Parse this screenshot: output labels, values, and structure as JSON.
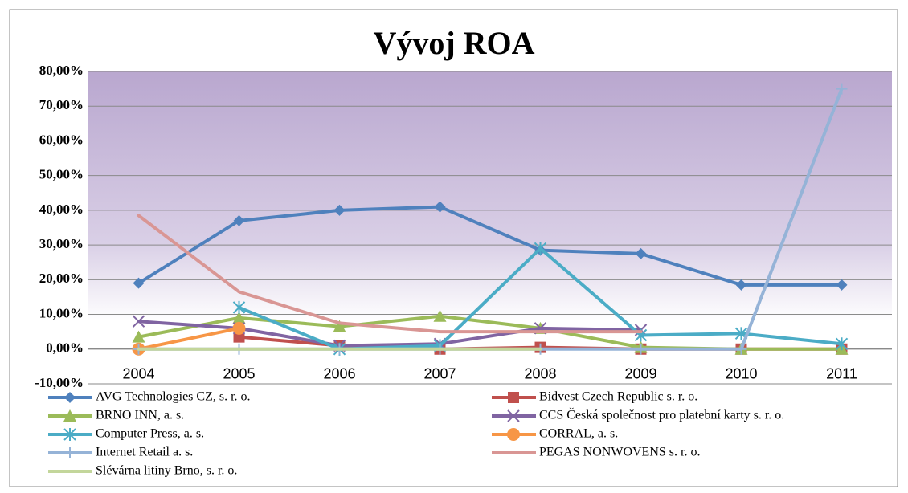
{
  "chart_data": {
    "type": "line",
    "title": "Vývoj ROA",
    "categories": [
      "2004",
      "2005",
      "2006",
      "2007",
      "2008",
      "2009",
      "2010",
      "2011"
    ],
    "ylim": [
      -10,
      80
    ],
    "yticks": [
      {
        "value": -10,
        "label": "-10,00%"
      },
      {
        "value": 0,
        "label": "0,00%"
      },
      {
        "value": 10,
        "label": "10,00%"
      },
      {
        "value": 20,
        "label": "20,00%"
      },
      {
        "value": 30,
        "label": "30,00%"
      },
      {
        "value": 40,
        "label": "40,00%"
      },
      {
        "value": 50,
        "label": "50,00%"
      },
      {
        "value": 60,
        "label": "60,00%"
      },
      {
        "value": 70,
        "label": "70,00%"
      },
      {
        "value": 80,
        "label": "80,00%"
      }
    ],
    "grid": true,
    "legend": "bottom",
    "series": [
      {
        "name": "AVG Technologies CZ, s. r. o.",
        "color": "#4f81bd",
        "marker": "diamond",
        "values": [
          19,
          37,
          40,
          41,
          28.5,
          27.5,
          18.5,
          18.5
        ]
      },
      {
        "name": "Bidvest Czech Republic s. r. o.",
        "color": "#c0504d",
        "marker": "square",
        "values": [
          null,
          3.5,
          1,
          0,
          0.5,
          0,
          0,
          0
        ]
      },
      {
        "name": "BRNO INN, a. s.",
        "color": "#9bbb59",
        "marker": "triangle",
        "values": [
          3.5,
          9,
          6.5,
          9.5,
          6,
          0.5,
          0,
          0
        ]
      },
      {
        "name": "CCS Česká společnost pro platební karty s. r. o.",
        "color": "#8064a2",
        "marker": "x",
        "values": [
          8,
          6,
          1,
          1.5,
          6,
          5.5,
          null,
          null
        ]
      },
      {
        "name": "Computer Press, a. s.",
        "color": "#4bacc6",
        "marker": "star",
        "values": [
          null,
          12,
          0,
          1,
          29,
          4,
          4.5,
          1.5
        ]
      },
      {
        "name": "CORRAL, a. s.",
        "color": "#f79646",
        "marker": "circle",
        "values": [
          0,
          6,
          null,
          null,
          null,
          null,
          null,
          null
        ]
      },
      {
        "name": "Internet Retail a. s.",
        "color": "#95b3d7",
        "marker": "plus",
        "values": [
          0,
          0,
          0,
          0,
          0,
          0,
          0,
          75
        ]
      },
      {
        "name": "PEGAS NONWOVENS s. r. o.",
        "color": "#d99694",
        "marker": "none",
        "values": [
          38.5,
          16.5,
          7.5,
          5,
          5,
          5,
          null,
          null
        ]
      },
      {
        "name": "Slévárna litiny Brno, s. r. o.",
        "color": "#c3d69b",
        "marker": "none",
        "values": [
          0,
          0,
          0,
          0,
          0,
          null,
          null,
          null
        ]
      }
    ]
  }
}
